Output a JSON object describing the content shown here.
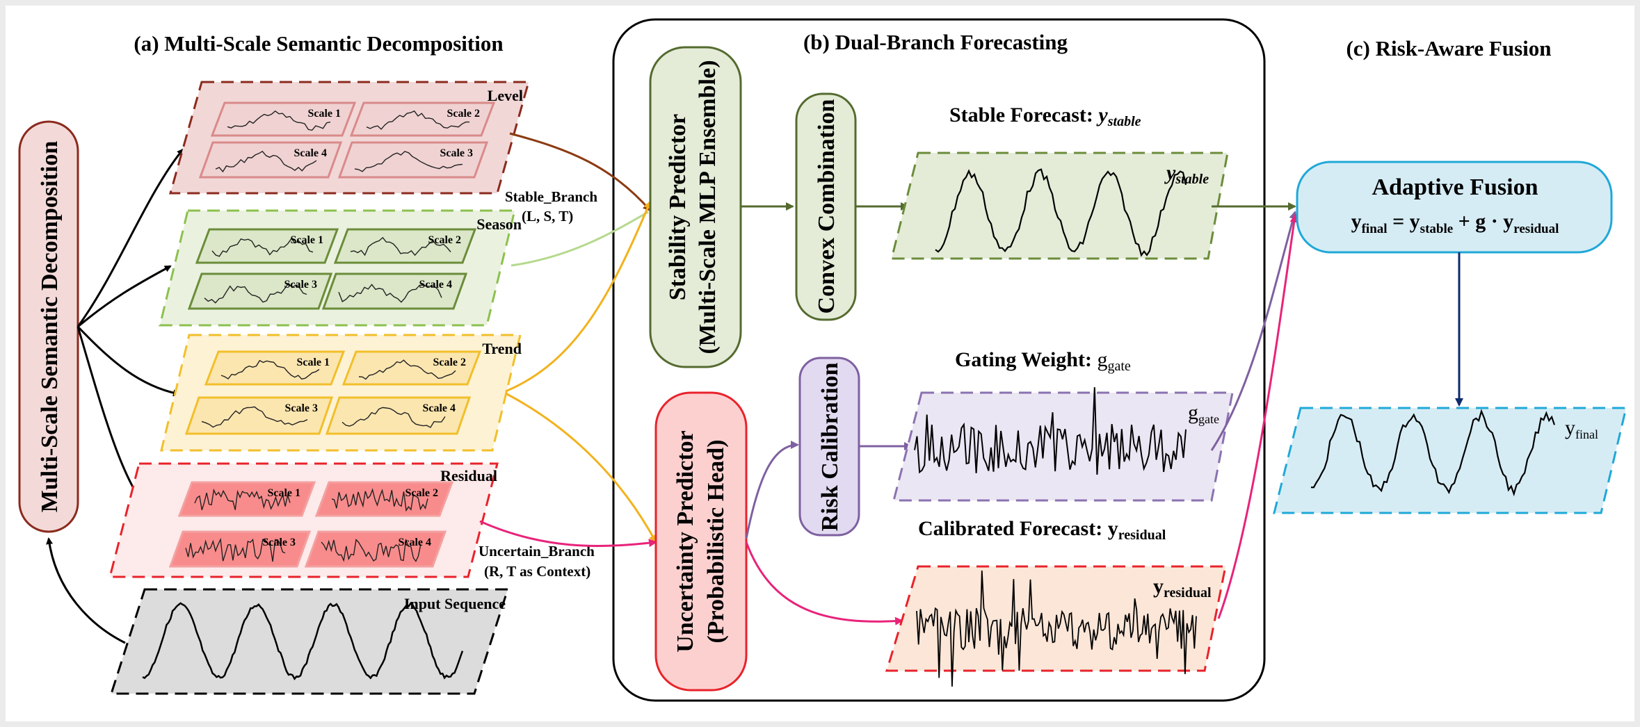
{
  "sections": {
    "a": "(a) Multi-Scale Semantic Decomposition",
    "b": "(b) Dual-Branch Forecasting",
    "c": "(c) Risk-Aware Fusion"
  },
  "decomp_box": "Multi-Scale Semantic Decomposition",
  "components": {
    "level": {
      "label": "Level",
      "scales": [
        "Scale 1",
        "Scale 2",
        "Scale 3",
        "Scale 4"
      ]
    },
    "season": {
      "label": "Season",
      "scales": [
        "Scale 1",
        "Scale 2",
        "Scale 3",
        "Scale 4"
      ]
    },
    "trend": {
      "label": "Trend",
      "scales": [
        "Scale 1",
        "Scale 2",
        "Scale 3",
        "Scale 4"
      ]
    },
    "residual": {
      "label": "Residual",
      "scales": [
        "Scale 1",
        "Scale 2",
        "Scale 3",
        "Scale 4"
      ]
    },
    "input": {
      "label": "Input Sequence"
    }
  },
  "branches": {
    "stable": {
      "name": "Stable_Branch",
      "sub": "(L, S, T)"
    },
    "uncertain": {
      "name": "Uncertain_Branch",
      "sub": "(R, T as Context)"
    }
  },
  "predictors": {
    "stability": {
      "line1": "Stability Predictor",
      "line2": "(Multi-Scale MLP Ensemble)"
    },
    "uncertainty": {
      "line1": "Uncertainty Predictor",
      "line2": "(Probabilistic Head)"
    }
  },
  "modules": {
    "convex": "Convex Combination",
    "risk": "Risk Calibration"
  },
  "forecasts": {
    "stable_title": "Stable Forecast: ",
    "stable_symbol": "y",
    "stable_sub": "stable",
    "gating_title": "Gating Weight: ",
    "gating_symbol": "g",
    "gating_sub": "gate",
    "calibrated_title": "Calibrated Forecast: ",
    "calibrated_symbol": "y",
    "calibrated_sub": "residual"
  },
  "fusion": {
    "title": "Adaptive Fusion",
    "formula_y": "y",
    "formula_final": "final",
    "formula_eq": " = y",
    "formula_stable": "stable",
    "formula_plus": " + g · y",
    "formula_residual": "residual",
    "output_symbol": "y",
    "output_sub": "final"
  },
  "colors": {
    "level": "#8b2a1e",
    "season": "#8cc04f",
    "trend": "#f2bf2a",
    "residual": "#e8232b",
    "stable_branch": "#556b2f",
    "uncertain_branch": "#e8237a",
    "risk": "#7e60a0",
    "fusion": "#1fa8d8",
    "final_arrow": "#0d2a6b"
  }
}
